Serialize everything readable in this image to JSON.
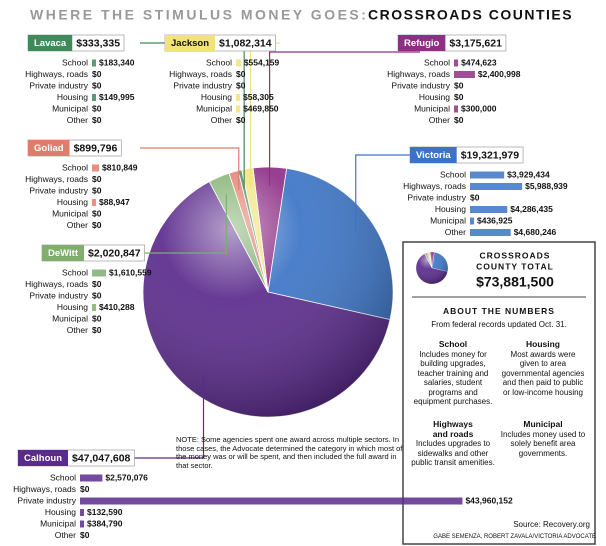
{
  "chart_data": {
    "type": "pie",
    "title": "WHERE THE STIMULUS MONEY GOES:",
    "subtitle": "CROSSROADS COUNTIES",
    "categories": [
      "Refugio",
      "Victoria",
      "Calhoun",
      "DeWitt",
      "Goliad",
      "Lavaca",
      "Jackson"
    ],
    "values": [
      3175621,
      19321979,
      47047608,
      2020847,
      899796,
      333335,
      1082314
    ],
    "value_labels": [
      "$3,175,621",
      "$19,321,979",
      "$47,047,608",
      "$2,020,847",
      "$899,796",
      "$333,335",
      "$1,082,314"
    ],
    "colors": [
      "#8e2f86",
      "#3b74c6",
      "#5a2a8c",
      "#7fae6e",
      "#e07c6c",
      "#3f8a5a",
      "#f1e27a"
    ],
    "sector_names": [
      "School",
      "Highways, roads",
      "Private industry",
      "Housing",
      "Municipal",
      "Other"
    ],
    "breakdown": [
      [
        474623,
        2400998,
        0,
        0,
        300000,
        0
      ],
      [
        3929434,
        5988939,
        0,
        4286435,
        436925,
        4680246
      ],
      [
        2570076,
        0,
        43960152,
        132590,
        384790,
        0
      ],
      [
        1610559,
        0,
        0,
        410288,
        0,
        0
      ],
      [
        810849,
        0,
        0,
        88947,
        0,
        0
      ],
      [
        183340,
        0,
        0,
        149995,
        0,
        0
      ],
      [
        554159,
        0,
        0,
        58305,
        469850,
        0
      ]
    ],
    "breakdown_labels": [
      [
        "$474,623",
        "$2,400,998",
        "$0",
        "$0",
        "$300,000",
        "$0"
      ],
      [
        "$3,929,434",
        "$5,988,939",
        "$0",
        "$4,286,435",
        "$436,925",
        "$4,680,246"
      ],
      [
        "$2,570,076",
        "$0",
        "$43,960,152",
        "$132,590",
        "$384,790",
        "$0"
      ],
      [
        "$1,610,559",
        "$0",
        "$0",
        "$410,288",
        "$0",
        "$0"
      ],
      [
        "$810,849",
        "$0",
        "$0",
        "$88,947",
        "$0",
        "$0"
      ],
      [
        "$183,340",
        "$0",
        "$0",
        "$149,995",
        "$0",
        "$0"
      ],
      [
        "$554,159",
        "$0",
        "$0",
        "$58,305",
        "$469,850",
        "$0"
      ]
    ],
    "total_title": [
      "CROSSROADS",
      "COUNTY TOTAL"
    ],
    "total_label": "$73,881,500"
  },
  "about": {
    "heading": "ABOUT THE NUMBERS",
    "intro": "From federal records updated Oct. 31.",
    "items": [
      {
        "title": "School",
        "text": "Includes money for building upgrades, teacher training and salaries, student programs and equipment purchases."
      },
      {
        "title": "Housing",
        "text": "Most awards were given to area governmental agencies and then paid to public or low-income housing"
      },
      {
        "title": "Highways and roads",
        "text": "Includes upgrades to sidewalks and other public transit amenities."
      },
      {
        "title": "Municipal",
        "text": "Includes money used to solely benefit area governments."
      }
    ]
  },
  "note": "NOTE: Some agencies spent one award across multiple sectors. In those cases, the Advocate determined the category in which most of the money was or will be spent, and then included the full award in that sector.",
  "source": "Source: Recovery.org",
  "credit": "GABE SEMENZA, ROBERT ZAVALA/VICTORIA ADVOCATE"
}
